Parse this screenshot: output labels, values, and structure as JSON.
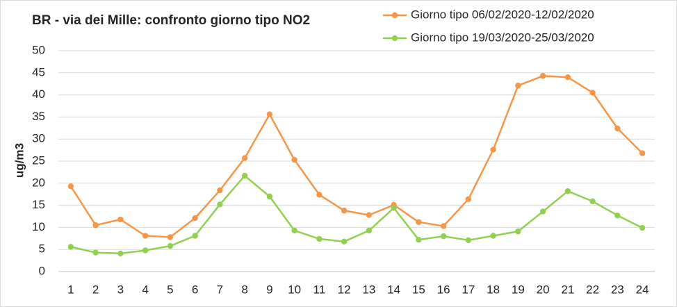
{
  "chart_data": {
    "type": "line",
    "title": "BR - via dei Mille: confronto giorno tipo NO2",
    "xlabel": "",
    "ylabel": "ug/m3",
    "ylim": [
      0,
      50
    ],
    "yticks": [
      0,
      5,
      10,
      15,
      20,
      25,
      30,
      35,
      40,
      45,
      50
    ],
    "grid": true,
    "legend_position": "top-right",
    "x": [
      1,
      2,
      3,
      4,
      5,
      6,
      7,
      8,
      9,
      10,
      11,
      12,
      13,
      14,
      15,
      16,
      17,
      18,
      19,
      20,
      21,
      22,
      23,
      24
    ],
    "series": [
      {
        "name": "Giorno tipo 06/02/2020-12/02/2020",
        "color": "#f79646",
        "values": [
          19.3,
          10.5,
          11.8,
          8.1,
          7.8,
          12.1,
          18.4,
          25.7,
          35.6,
          25.3,
          17.4,
          13.8,
          12.8,
          15.1,
          11.2,
          10.3,
          16.4,
          27.6,
          42.1,
          44.3,
          44.0,
          40.5,
          32.4,
          26.8
        ]
      },
      {
        "name": "Giorno tipo 19/03/2020-25/03/2020",
        "color": "#92d050",
        "values": [
          5.6,
          4.3,
          4.1,
          4.8,
          5.8,
          8.1,
          15.2,
          21.7,
          17.0,
          9.3,
          7.4,
          6.8,
          9.3,
          14.4,
          7.2,
          8.0,
          7.1,
          8.1,
          9.1,
          13.6,
          18.2,
          15.9,
          12.7,
          9.9
        ]
      }
    ]
  }
}
